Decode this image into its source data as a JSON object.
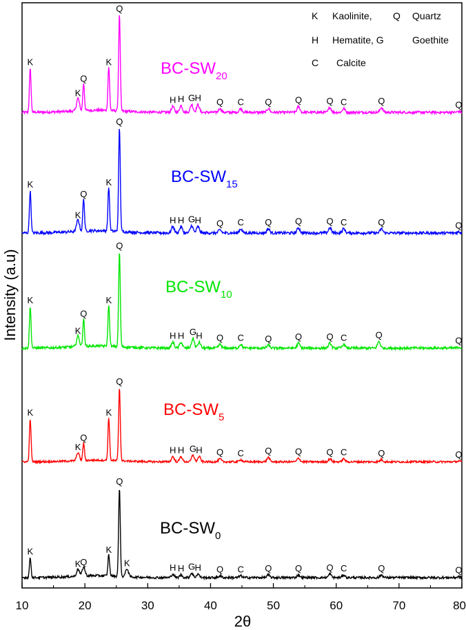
{
  "chart_data": {
    "type": "line",
    "xlabel": "2θ",
    "ylabel": "Intensity (a.u)",
    "xlim": [
      10,
      80
    ],
    "xticks": [
      "10",
      "20",
      "30",
      "40",
      "50",
      "60",
      "70",
      "80"
    ],
    "legend": {
      "placement": "top-right",
      "rows": [
        [
          "K",
          "Kaolinite,",
          "Q",
          "Quartz"
        ],
        [
          "H",
          "Hematite, G",
          "Goethite"
        ],
        [
          "C",
          "Calcite"
        ]
      ]
    },
    "series": [
      {
        "base": "BC-SW",
        "sub": "20",
        "color": "#ff00ff",
        "peaks": [
          {
            "x": 11.3,
            "h": 45,
            "label": "K"
          },
          {
            "x": 18.9,
            "h": 13,
            "label": "K"
          },
          {
            "x": 19.8,
            "h": 28,
            "label": "Q"
          },
          {
            "x": 23.8,
            "h": 45,
            "label": "K"
          },
          {
            "x": 25.5,
            "h": 100,
            "label": "Q"
          },
          {
            "x": 34.0,
            "h": 6,
            "label": "H"
          },
          {
            "x": 35.3,
            "h": 7,
            "label": "H"
          },
          {
            "x": 37.0,
            "h": 8,
            "label": "G"
          },
          {
            "x": 38.0,
            "h": 8,
            "label": "H"
          },
          {
            "x": 41.5,
            "h": 4,
            "label": "Q"
          },
          {
            "x": 44.8,
            "h": 4,
            "label": "C"
          },
          {
            "x": 49.2,
            "h": 4,
            "label": "Q"
          },
          {
            "x": 54.0,
            "h": 6,
            "label": "Q"
          },
          {
            "x": 59.0,
            "h": 5,
            "label": "Q"
          },
          {
            "x": 61.2,
            "h": 4,
            "label": "C"
          },
          {
            "x": 67.2,
            "h": 5,
            "label": "Q"
          },
          {
            "x": 79.5,
            "h": 1,
            "label": "Q"
          }
        ]
      },
      {
        "base": "BC-SW",
        "sub": "15",
        "color": "#0000ff",
        "peaks": [
          {
            "x": 11.3,
            "h": 40,
            "label": "K"
          },
          {
            "x": 18.9,
            "h": 11,
            "label": "K"
          },
          {
            "x": 19.8,
            "h": 31,
            "label": "Q"
          },
          {
            "x": 23.8,
            "h": 42,
            "label": "K"
          },
          {
            "x": 25.5,
            "h": 100,
            "label": "Q"
          },
          {
            "x": 34.0,
            "h": 6,
            "label": "H"
          },
          {
            "x": 35.3,
            "h": 6,
            "label": "H"
          },
          {
            "x": 37.0,
            "h": 7,
            "label": "G"
          },
          {
            "x": 38.0,
            "h": 6,
            "label": "H"
          },
          {
            "x": 41.5,
            "h": 3,
            "label": "Q"
          },
          {
            "x": 44.8,
            "h": 4,
            "label": "C"
          },
          {
            "x": 49.2,
            "h": 4,
            "label": "Q"
          },
          {
            "x": 54.0,
            "h": 5,
            "label": "Q"
          },
          {
            "x": 59.0,
            "h": 5,
            "label": "Q"
          },
          {
            "x": 61.2,
            "h": 4,
            "label": "C"
          },
          {
            "x": 67.2,
            "h": 4,
            "label": "Q"
          },
          {
            "x": 79.5,
            "h": 1,
            "label": "Q"
          }
        ]
      },
      {
        "base": "BC-SW",
        "sub": "10",
        "color": "#00e600",
        "peaks": [
          {
            "x": 11.3,
            "h": 43,
            "label": "K"
          },
          {
            "x": 18.9,
            "h": 11,
            "label": "K"
          },
          {
            "x": 19.8,
            "h": 29,
            "label": "Q"
          },
          {
            "x": 23.8,
            "h": 43,
            "label": "K"
          },
          {
            "x": 25.5,
            "h": 100,
            "label": "Q"
          },
          {
            "x": 34.0,
            "h": 6,
            "label": "H"
          },
          {
            "x": 35.3,
            "h": 6,
            "label": "H"
          },
          {
            "x": 37.2,
            "h": 10,
            "label": "G"
          },
          {
            "x": 38.2,
            "h": 6,
            "label": "H"
          },
          {
            "x": 41.5,
            "h": 4,
            "label": "Q"
          },
          {
            "x": 44.8,
            "h": 4,
            "label": "C"
          },
          {
            "x": 49.2,
            "h": 3,
            "label": "Q"
          },
          {
            "x": 54.0,
            "h": 5,
            "label": "Q"
          },
          {
            "x": 59.0,
            "h": 5,
            "label": "Q"
          },
          {
            "x": 61.2,
            "h": 4,
            "label": "C"
          },
          {
            "x": 66.8,
            "h": 7,
            "label": "Q"
          },
          {
            "x": 79.5,
            "h": 1,
            "label": "Q"
          }
        ]
      },
      {
        "base": "BC-SW",
        "sub": "5",
        "color": "#ff0000",
        "peaks": [
          {
            "x": 11.3,
            "h": 58,
            "label": "K"
          },
          {
            "x": 18.9,
            "h": 11,
            "label": "K"
          },
          {
            "x": 19.8,
            "h": 24,
            "label": "Q"
          },
          {
            "x": 23.8,
            "h": 58,
            "label": "K"
          },
          {
            "x": 25.5,
            "h": 100,
            "label": "Q"
          },
          {
            "x": 34.0,
            "h": 7,
            "label": "H"
          },
          {
            "x": 35.3,
            "h": 7,
            "label": "H"
          },
          {
            "x": 37.2,
            "h": 9,
            "label": "G"
          },
          {
            "x": 38.2,
            "h": 7,
            "label": "H"
          },
          {
            "x": 41.5,
            "h": 4,
            "label": "Q"
          },
          {
            "x": 44.8,
            "h": 3,
            "label": "C"
          },
          {
            "x": 49.2,
            "h": 6,
            "label": "Q"
          },
          {
            "x": 54.0,
            "h": 5,
            "label": "Q"
          },
          {
            "x": 59.0,
            "h": 4,
            "label": "Q"
          },
          {
            "x": 61.2,
            "h": 4,
            "label": "C"
          },
          {
            "x": 67.2,
            "h": 3,
            "label": "Q"
          },
          {
            "x": 79.5,
            "h": 1,
            "label": "Q"
          }
        ]
      },
      {
        "base": "BC-SW",
        "sub": "0",
        "color": "#000000",
        "peaks": [
          {
            "x": 11.3,
            "h": 22,
            "label": "K"
          },
          {
            "x": 18.9,
            "h": 8,
            "label": "K"
          },
          {
            "x": 19.8,
            "h": 10,
            "label": "Q"
          },
          {
            "x": 23.8,
            "h": 24,
            "label": "K"
          },
          {
            "x": 25.5,
            "h": 100,
            "label": "Q"
          },
          {
            "x": 26.7,
            "h": 9,
            "label": "K"
          },
          {
            "x": 34.0,
            "h": 4,
            "label": "H"
          },
          {
            "x": 35.3,
            "h": 3,
            "label": "H"
          },
          {
            "x": 37.0,
            "h": 5,
            "label": "G"
          },
          {
            "x": 38.0,
            "h": 4,
            "label": "H"
          },
          {
            "x": 41.5,
            "h": 2,
            "label": "Q"
          },
          {
            "x": 44.8,
            "h": 2,
            "label": "C"
          },
          {
            "x": 49.2,
            "h": 3,
            "label": "Q"
          },
          {
            "x": 54.0,
            "h": 3,
            "label": "Q"
          },
          {
            "x": 59.0,
            "h": 4,
            "label": "Q"
          },
          {
            "x": 61.2,
            "h": 3,
            "label": "C"
          },
          {
            "x": 67.2,
            "h": 3,
            "label": "Q"
          },
          {
            "x": 79.5,
            "h": 1,
            "label": "Q"
          }
        ]
      }
    ]
  }
}
